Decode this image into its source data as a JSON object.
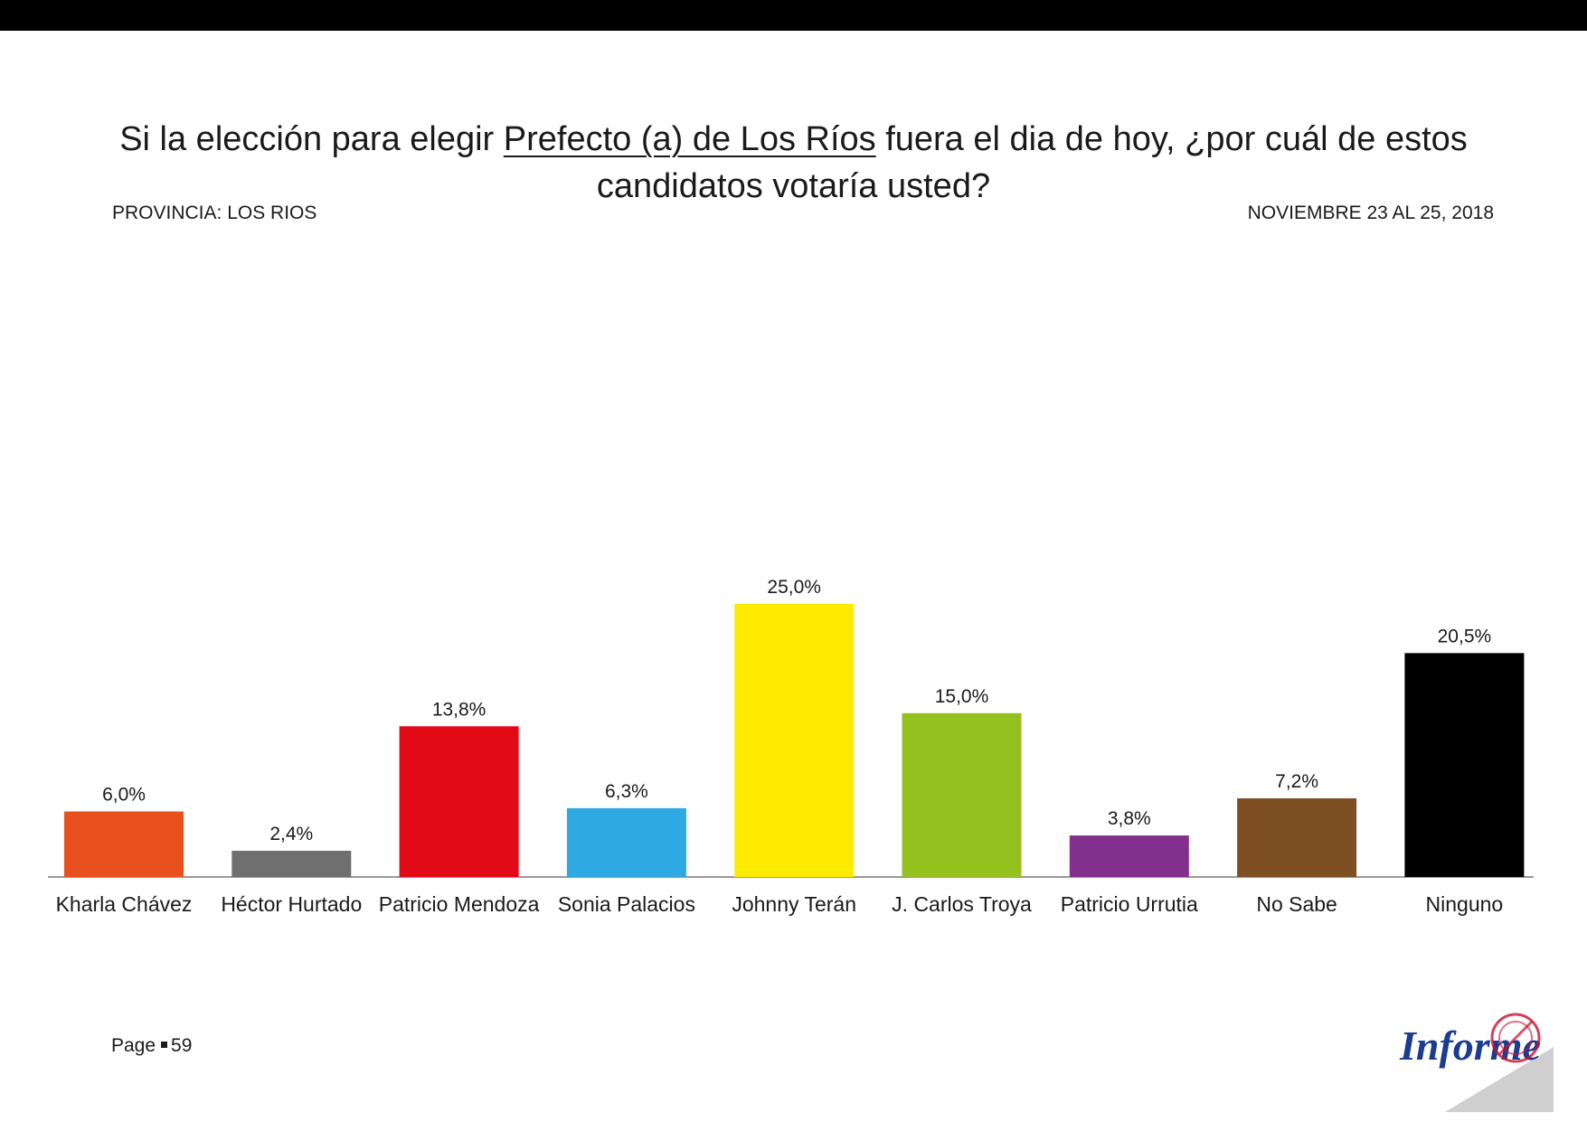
{
  "header": {
    "title_pre": "Si la elección para elegir ",
    "title_highlight": "Prefecto (a) de Los Ríos",
    "title_post": " fuera el dia de hoy, ¿por cuál de estos candidatos votaría usted?",
    "province": "PROVINCIA: LOS RIOS",
    "date": "NOVIEMBRE 23 AL 25, 2018"
  },
  "footer": {
    "page_label": "Page",
    "page_number": "59",
    "logo_text": "Informe"
  },
  "chart_data": {
    "type": "bar",
    "categories": [
      "Kharla Chávez",
      "Héctor Hurtado",
      "Patricio Mendoza",
      "Sonia Palacios",
      "Johnny Terán",
      "J. Carlos Troya",
      "Patricio Urrutia",
      "No Sabe",
      "Ninguno"
    ],
    "values": [
      6.0,
      2.4,
      13.8,
      6.3,
      25.0,
      15.0,
      3.8,
      7.2,
      20.5
    ],
    "value_labels": [
      "6,0%",
      "2,4%",
      "13,8%",
      "6,3%",
      "25,0%",
      "15,0%",
      "3,8%",
      "7,2%",
      "20,5%"
    ],
    "colors": [
      "#e8501e",
      "#6f6f6f",
      "#e20a17",
      "#2fa9e1",
      "#ffeb00",
      "#95c11f",
      "#822f8d",
      "#7f4f24",
      "#000000"
    ],
    "ylim": [
      0,
      25
    ],
    "grid": false,
    "legend": "none"
  }
}
